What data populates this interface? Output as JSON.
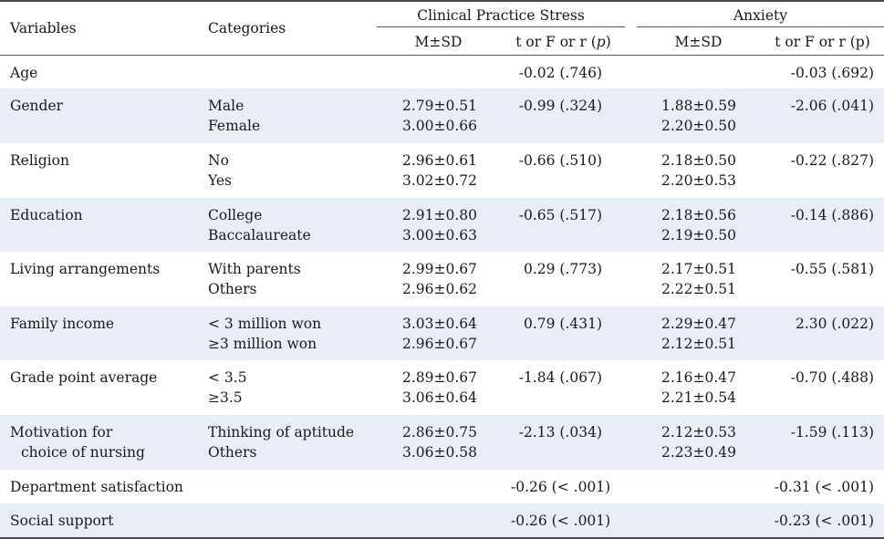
{
  "header": {
    "variables": "Variables",
    "categories": "Categories",
    "group1": "Clinical Practice Stress",
    "group2": "Anxiety",
    "msd": "M±SD",
    "test1_prefix": "t or F or r (",
    "test1_p": "p",
    "test1_suffix": ")",
    "test2": "t or F or r (p)"
  },
  "rows": [
    {
      "variable": [
        "Age"
      ],
      "categories": [],
      "cps_msd": [],
      "cps_test": "-0.02 (.746)",
      "anx_msd": [],
      "anx_test": "-0.03 (.692)"
    },
    {
      "variable": [
        "Gender"
      ],
      "categories": [
        "Male",
        "Female"
      ],
      "cps_msd": [
        "2.79±0.51",
        "3.00±0.66"
      ],
      "cps_test": "-0.99 (.324)",
      "anx_msd": [
        "1.88±0.59",
        "2.20±0.50"
      ],
      "anx_test": "-2.06 (.041)"
    },
    {
      "variable": [
        "Religion"
      ],
      "categories": [
        "No",
        "Yes"
      ],
      "cps_msd": [
        "2.96±0.61",
        "3.02±0.72"
      ],
      "cps_test": "-0.66 (.510)",
      "anx_msd": [
        "2.18±0.50",
        "2.20±0.53"
      ],
      "anx_test": "-0.22 (.827)"
    },
    {
      "variable": [
        "Education"
      ],
      "categories": [
        "College",
        "Baccalaureate"
      ],
      "cps_msd": [
        "2.91±0.80",
        "3.00±0.63"
      ],
      "cps_test": "-0.65 (.517)",
      "anx_msd": [
        "2.18±0.56",
        "2.19±0.50"
      ],
      "anx_test": "-0.14 (.886)"
    },
    {
      "variable": [
        "Living arrangements"
      ],
      "categories": [
        "With parents",
        "Others"
      ],
      "cps_msd": [
        "2.99±0.67",
        "2.96±0.62"
      ],
      "cps_test": "0.29 (.773)",
      "anx_msd": [
        "2.17±0.51",
        "2.22±0.51"
      ],
      "anx_test": "-0.55 (.581)"
    },
    {
      "variable": [
        "Family income"
      ],
      "categories": [
        "< 3 million won",
        "≥3 million won"
      ],
      "cps_msd": [
        "3.03±0.64",
        "2.96±0.67"
      ],
      "cps_test": "0.79 (.431)",
      "anx_msd": [
        "2.29±0.47",
        "2.12±0.51"
      ],
      "anx_test": "2.30 (.022)"
    },
    {
      "variable": [
        "Grade point average"
      ],
      "categories": [
        "< 3.5",
        "≥3.5"
      ],
      "cps_msd": [
        "2.89±0.67",
        "3.06±0.64"
      ],
      "cps_test": "-1.84 (.067)",
      "anx_msd": [
        "2.16±0.47",
        "2.21±0.54"
      ],
      "anx_test": "-0.70 (.488)"
    },
    {
      "variable": [
        "Motivation for",
        "choice of nursing"
      ],
      "categories": [
        "Thinking of aptitude",
        "Others"
      ],
      "cps_msd": [
        "2.86±0.75",
        "3.06±0.58"
      ],
      "cps_test": "-2.13 (.034)",
      "anx_msd": [
        "2.12±0.53",
        "2.23±0.49"
      ],
      "anx_test": "-1.59 (.113)"
    },
    {
      "variable": [
        "Department satisfaction"
      ],
      "categories": [],
      "cps_msd": [],
      "cps_test": "-0.26 (< .001)",
      "anx_msd": [],
      "anx_test": "-0.31 (< .001)"
    },
    {
      "variable": [
        "Social support"
      ],
      "categories": [],
      "cps_msd": [],
      "cps_test": "-0.26 (< .001)",
      "anx_msd": [],
      "anx_test": "-0.23 (< .001)"
    }
  ]
}
